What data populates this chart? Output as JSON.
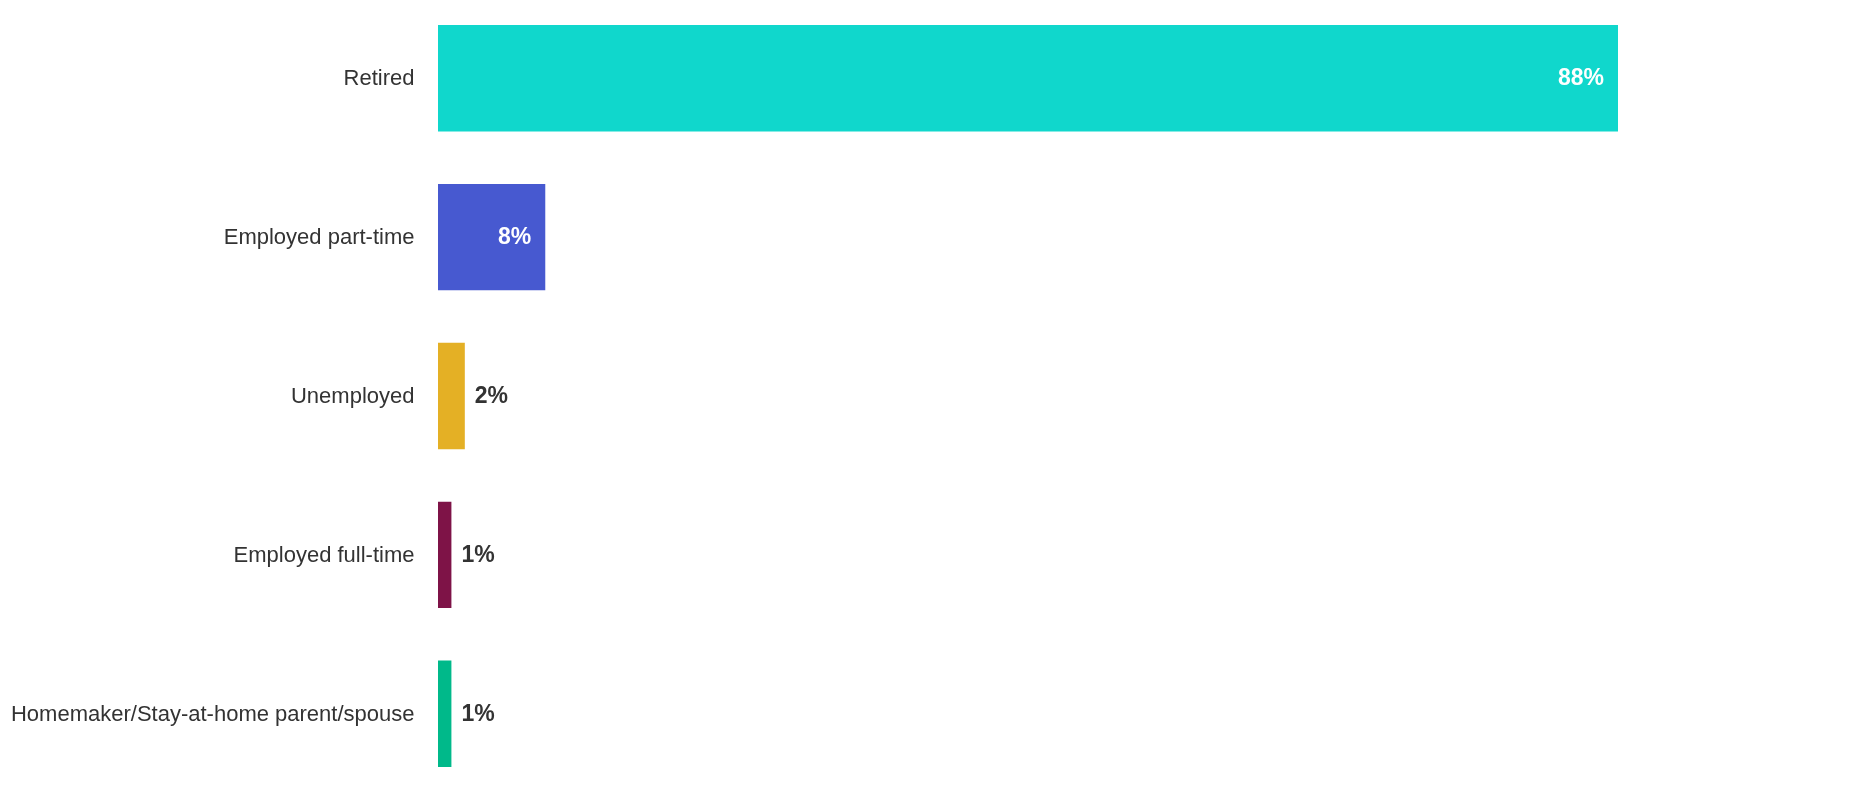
{
  "chart_data": {
    "type": "bar",
    "orientation": "horizontal",
    "categories": [
      "Retired",
      "Employed part-time",
      "Unemployed",
      "Employed full-time",
      "Homemaker/Stay-at-home parent/spouse"
    ],
    "values": [
      88,
      8,
      2,
      1,
      1
    ],
    "value_labels": [
      "88%",
      "8%",
      "2%",
      "1%",
      "1%"
    ],
    "colors": [
      "#10d7cc",
      "#4759d0",
      "#e4b025",
      "#7e1347",
      "#00b98a"
    ],
    "legend": false
  }
}
